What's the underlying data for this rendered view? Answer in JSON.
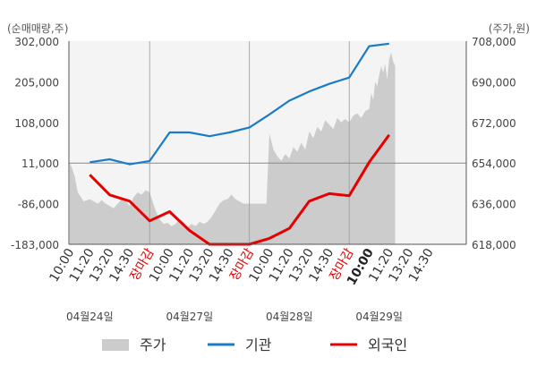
{
  "chart_data": {
    "type": "line",
    "left_axis_unit": "(순매매량,주)",
    "right_axis_unit": "(주가,원)",
    "y_left_ticks": [
      "302,000",
      "205,000",
      "108,000",
      "11,000",
      "-86,000",
      "-183,000"
    ],
    "y_left_range": [
      -183000,
      302000
    ],
    "y_right_ticks": [
      "708,000",
      "690,000",
      "672,000",
      "654,000",
      "636,000",
      "618,000"
    ],
    "y_right_range": [
      618000,
      708000
    ],
    "x_tick_labels": [
      "10:00",
      "11:20",
      "13:20",
      "14:30",
      "장마감",
      "10:00",
      "11:20",
      "13:20",
      "14:30",
      "장마감",
      "10:00",
      "11:20",
      "13:20",
      "14:30",
      "장마감",
      "10:00",
      "11:20",
      "13:20",
      "14:30"
    ],
    "close_label": "장마감",
    "highlight_tick": 15,
    "dates": [
      {
        "label": "04월24일",
        "index": 1.0
      },
      {
        "label": "04월27일",
        "index": 6.0
      },
      {
        "label": "04월28일",
        "index": 11.0
      },
      {
        "label": "04월29일",
        "index": 15.5
      }
    ],
    "series": [
      {
        "name": "주가",
        "kind": "area",
        "axis": "right",
        "color": "#cccccc",
        "x": [
          0,
          0.1,
          0.25,
          0.4,
          0.55,
          0.7,
          0.85,
          1,
          1.2,
          1.4,
          1.6,
          1.8,
          2,
          2.2,
          2.4,
          2.6,
          2.8,
          3,
          3.2,
          3.4,
          3.6,
          3.8,
          4,
          4.15,
          4.3,
          4.5,
          4.7,
          4.9,
          5.1,
          5.3,
          5.5,
          5.7,
          5.9,
          6.1,
          6.3,
          6.5,
          6.7,
          6.9,
          7.1,
          7.3,
          7.5,
          7.7,
          7.9,
          8.1,
          8.3,
          8.5,
          8.7,
          8.9,
          9.1,
          9.3,
          9.5,
          9.7,
          9.85,
          10,
          10.2,
          10.4,
          10.6,
          10.8,
          11,
          11.2,
          11.4,
          11.6,
          11.8,
          12,
          12.2,
          12.4,
          12.6,
          12.8,
          13,
          13.2,
          13.4,
          13.6,
          13.8,
          14,
          14.2,
          14.4,
          14.6,
          14.8,
          15,
          15.1,
          15.2,
          15.3,
          15.4,
          15.5,
          15.6,
          15.7,
          15.8,
          15.9,
          16,
          16.1,
          16.2,
          16.3
        ],
        "values": [
          654000,
          652000,
          648000,
          641000,
          639000,
          637000,
          637500,
          638000,
          637000,
          636000,
          637500,
          636000,
          635000,
          634000,
          636000,
          638000,
          637000,
          635000,
          639000,
          641000,
          640000,
          642000,
          641000,
          637000,
          633000,
          629000,
          627000,
          627500,
          626000,
          627000,
          629000,
          628000,
          625500,
          627000,
          626000,
          628000,
          627000,
          628000,
          630000,
          633000,
          636000,
          637500,
          638000,
          640000,
          638000,
          637000,
          636000,
          636000,
          636000,
          636000,
          636000,
          636000,
          636000,
          667000,
          660000,
          657000,
          655000,
          658000,
          656000,
          661000,
          659000,
          663000,
          660000,
          668000,
          665000,
          670000,
          668000,
          673000,
          671000,
          669000,
          674000,
          672000,
          673500,
          672000,
          675000,
          676000,
          674000,
          677000,
          678000,
          685000,
          682000,
          690000,
          688000,
          693000,
          697000,
          694000,
          698000,
          691000,
          700000,
          703000,
          699000,
          697000
        ]
      },
      {
        "name": "기관",
        "kind": "line",
        "axis": "left",
        "color": "#1a7cc6",
        "x": [
          1.0,
          2.0,
          3.0,
          4.0,
          5.0,
          6.0,
          7.0,
          8.0,
          9.0,
          10.0,
          11.0,
          12.0,
          13.0,
          14.0,
          15.0,
          16.0
        ],
        "values": [
          13000,
          20000,
          8000,
          16000,
          84000,
          84000,
          75000,
          84000,
          96000,
          127000,
          160000,
          182000,
          200000,
          215000,
          290000,
          296000
        ]
      },
      {
        "name": "외국인",
        "kind": "line",
        "axis": "left",
        "color": "#e60000",
        "x": [
          1.0,
          2.0,
          3.0,
          4.0,
          5.0,
          6.0,
          7.0,
          8.0,
          9.0,
          10.0,
          11.0,
          12.0,
          13.0,
          14.0,
          15.0,
          16.0
        ],
        "values": [
          -17000,
          -65000,
          -80000,
          -127000,
          -105000,
          -150000,
          -183000,
          -183000,
          -183000,
          -169000,
          -145000,
          -80000,
          -62000,
          -67000,
          13000,
          78000
        ]
      }
    ],
    "legend": [
      "주가",
      "기관",
      "외국인"
    ],
    "legend_position": "bottom",
    "grid": "vertical lines at market close, horizontal line at 11,000"
  }
}
